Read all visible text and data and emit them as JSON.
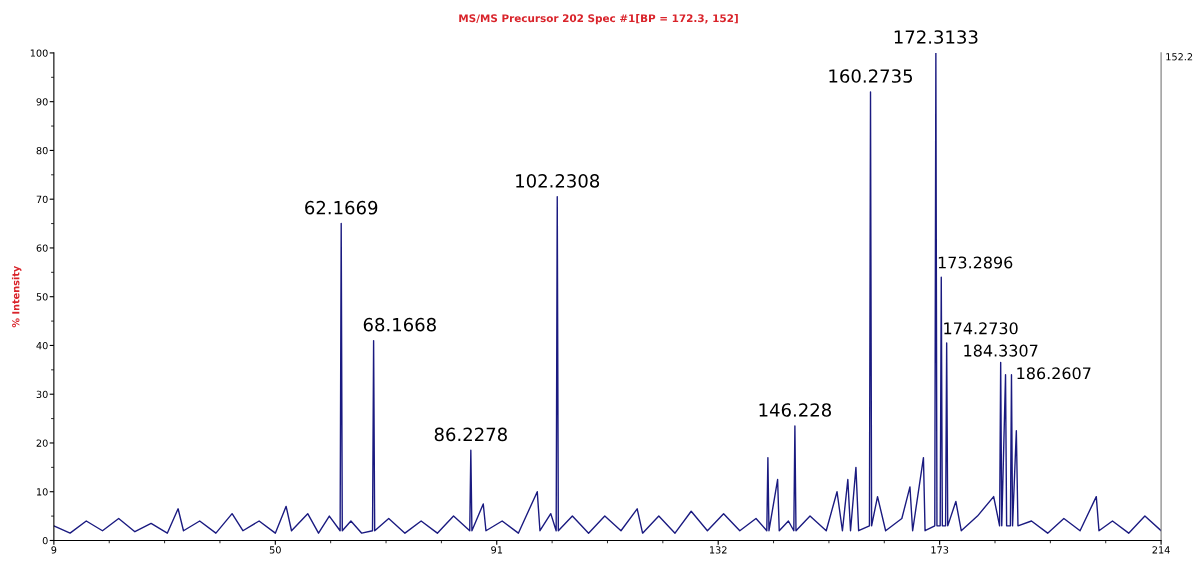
{
  "chart_data": {
    "type": "line",
    "title": "MS/MS Precursor 202 Spec #1[BP = 172.3, 152]",
    "ylabel": "% Intensity",
    "xlim": [
      9,
      214
    ],
    "xticks": [
      9,
      50,
      91,
      132,
      173,
      214
    ],
    "ylim": [
      0,
      100
    ],
    "yticks": [
      0,
      10,
      20,
      30,
      40,
      50,
      60,
      70,
      80,
      90,
      100
    ],
    "grid": false,
    "legend": false,
    "marker": "none",
    "line_style": "solid",
    "series": [
      {
        "color": "#1a1a80",
        "x": [
          9,
          12,
          15,
          18,
          21,
          24,
          27,
          30,
          32,
          33,
          36,
          39,
          42,
          44,
          47,
          50,
          52,
          53,
          56,
          58,
          60,
          62.0,
          62.2,
          62.4,
          64,
          66,
          68.0,
          68.2,
          68.4,
          71,
          74,
          77,
          80,
          83,
          86.0,
          86.2,
          86.4,
          88.5,
          89,
          92,
          95,
          98.5,
          99,
          101,
          102.0,
          102.2,
          102.4,
          105,
          108,
          111,
          114,
          117,
          118,
          121,
          124,
          127,
          130,
          133,
          136,
          139,
          141.0,
          141.2,
          141.4,
          143,
          143.3,
          145,
          146.0,
          146.2,
          146.4,
          149,
          152,
          154,
          155,
          156,
          156.5,
          157.5,
          158,
          160.0,
          160.2,
          160.4,
          161.5,
          163,
          166,
          167.5,
          168,
          170,
          170.3,
          172.1,
          172.3,
          172.5,
          173.1,
          173.3,
          173.5,
          174.1,
          174.3,
          174.5,
          176,
          177,
          180,
          183,
          184.1,
          184.3,
          184.5,
          185.2,
          185.4,
          186.1,
          186.3,
          186.5,
          187.2,
          187.5,
          190,
          193,
          196,
          199,
          202,
          202.5,
          205,
          208,
          211,
          214
        ],
        "values": [
          3,
          1.5,
          4,
          2,
          4.5,
          1.8,
          3.5,
          1.5,
          6.5,
          2,
          4,
          1.5,
          5.5,
          2,
          4,
          1.5,
          7,
          2,
          5.5,
          1.5,
          5,
          2,
          65,
          2,
          4,
          1.5,
          2,
          41,
          2,
          4.5,
          1.5,
          4,
          1.5,
          5,
          2,
          18.5,
          2,
          7.5,
          2,
          4,
          1.5,
          10,
          2,
          5.5,
          2,
          70.5,
          2,
          5,
          1.5,
          5,
          2,
          6.5,
          1.5,
          5,
          1.5,
          6,
          2,
          5.5,
          2,
          4.5,
          2,
          17,
          2,
          12.5,
          2,
          4,
          2,
          23.5,
          2,
          5,
          2,
          10,
          2,
          12.5,
          2,
          15,
          2,
          3,
          92,
          3,
          9,
          2,
          4.5,
          11,
          2,
          17,
          2,
          3,
          100,
          3,
          3,
          54,
          3,
          3,
          40.5,
          3,
          8,
          2,
          5,
          9,
          3,
          36.5,
          3,
          34,
          3,
          3,
          34,
          3,
          22.5,
          3,
          4,
          1.5,
          4.5,
          2,
          9,
          2,
          4,
          1.5,
          5,
          2
        ]
      }
    ],
    "annotations": [
      {
        "text": "62.1669",
        "x": 62.2,
        "y": 65
      },
      {
        "text": "68.1668",
        "x": 68.2,
        "y": 41
      },
      {
        "text": "86.2278",
        "x": 86.2,
        "y": 18.5
      },
      {
        "text": "102.2308",
        "x": 102.2,
        "y": 70.5
      },
      {
        "text": "146.228",
        "x": 146.2,
        "y": 23.5
      },
      {
        "text": "160.2735",
        "x": 160.2,
        "y": 92
      },
      {
        "text": "172.3133",
        "x": 172.3,
        "y": 100
      },
      {
        "text": "173.2896",
        "x": 173.3,
        "y": 54
      },
      {
        "text": "174.2730",
        "x": 174.3,
        "y": 40.5
      },
      {
        "text": "184.3307",
        "x": 184.3,
        "y": 36.5
      },
      {
        "text": "186.2607",
        "x": 186.3,
        "y": 34
      },
      "152.2"
    ]
  }
}
